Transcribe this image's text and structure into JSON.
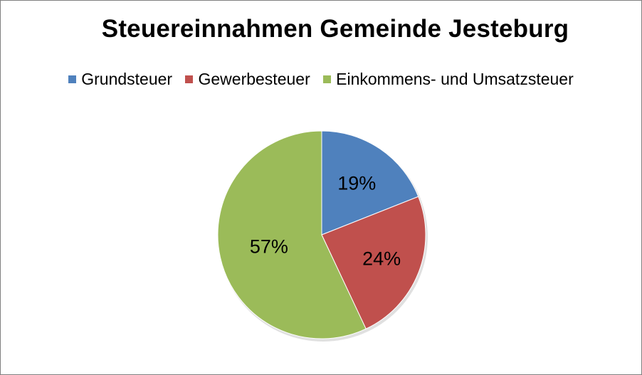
{
  "chart_data": {
    "type": "pie",
    "title": "Steuereinnahmen Gemeinde Jesteburg",
    "legend_position": "top",
    "categories": [
      "Grundsteuer",
      "Gewerbesteuer",
      "Einkommens- und Umsatzsteuer"
    ],
    "values": [
      19,
      24,
      57
    ],
    "data_labels": [
      "19%",
      "24%",
      "57%"
    ],
    "colors": [
      "#4f81bd",
      "#c0504d",
      "#9bbb59"
    ]
  }
}
